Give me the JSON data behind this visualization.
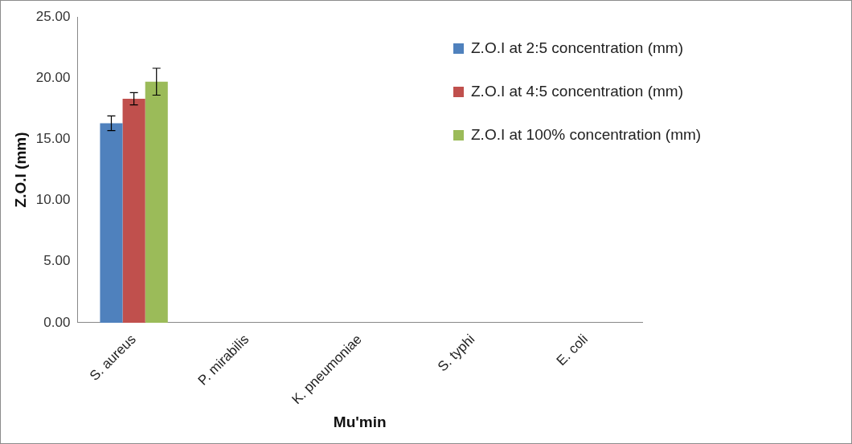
{
  "chart_data": {
    "type": "bar",
    "xlabel": "Mu'min",
    "ylabel": "Z.O.I (mm)",
    "categories": [
      "S. aureus",
      "P. mirabilis",
      "K. pneumoniae",
      "S. typhi",
      "E. coli"
    ],
    "series": [
      {
        "name": "Z.O.I at 2:5 concentration (mm)",
        "color": "#4f81bd",
        "values": [
          16.3,
          null,
          null,
          null,
          null
        ],
        "errors": [
          0.6,
          null,
          null,
          null,
          null
        ]
      },
      {
        "name": "Z.O.I at 4:5 concentration (mm)",
        "color": "#c0504d",
        "values": [
          18.3,
          null,
          null,
          null,
          null
        ],
        "errors": [
          0.5,
          null,
          null,
          null,
          null
        ]
      },
      {
        "name": "Z.O.I at 100% concentration (mm)",
        "color": "#9bbb59",
        "values": [
          19.7,
          null,
          null,
          null,
          null
        ],
        "errors": [
          1.1,
          null,
          null,
          null,
          null
        ]
      }
    ],
    "ylim": [
      0,
      25
    ],
    "yticks": [
      {
        "value": 0,
        "label": "0.00"
      },
      {
        "value": 5,
        "label": "5.00"
      },
      {
        "value": 10,
        "label": "10.00"
      },
      {
        "value": 15,
        "label": "15.00"
      },
      {
        "value": 20,
        "label": "20.00"
      },
      {
        "value": 25,
        "label": "25.00"
      }
    ],
    "grid": false,
    "legend": "top right"
  }
}
